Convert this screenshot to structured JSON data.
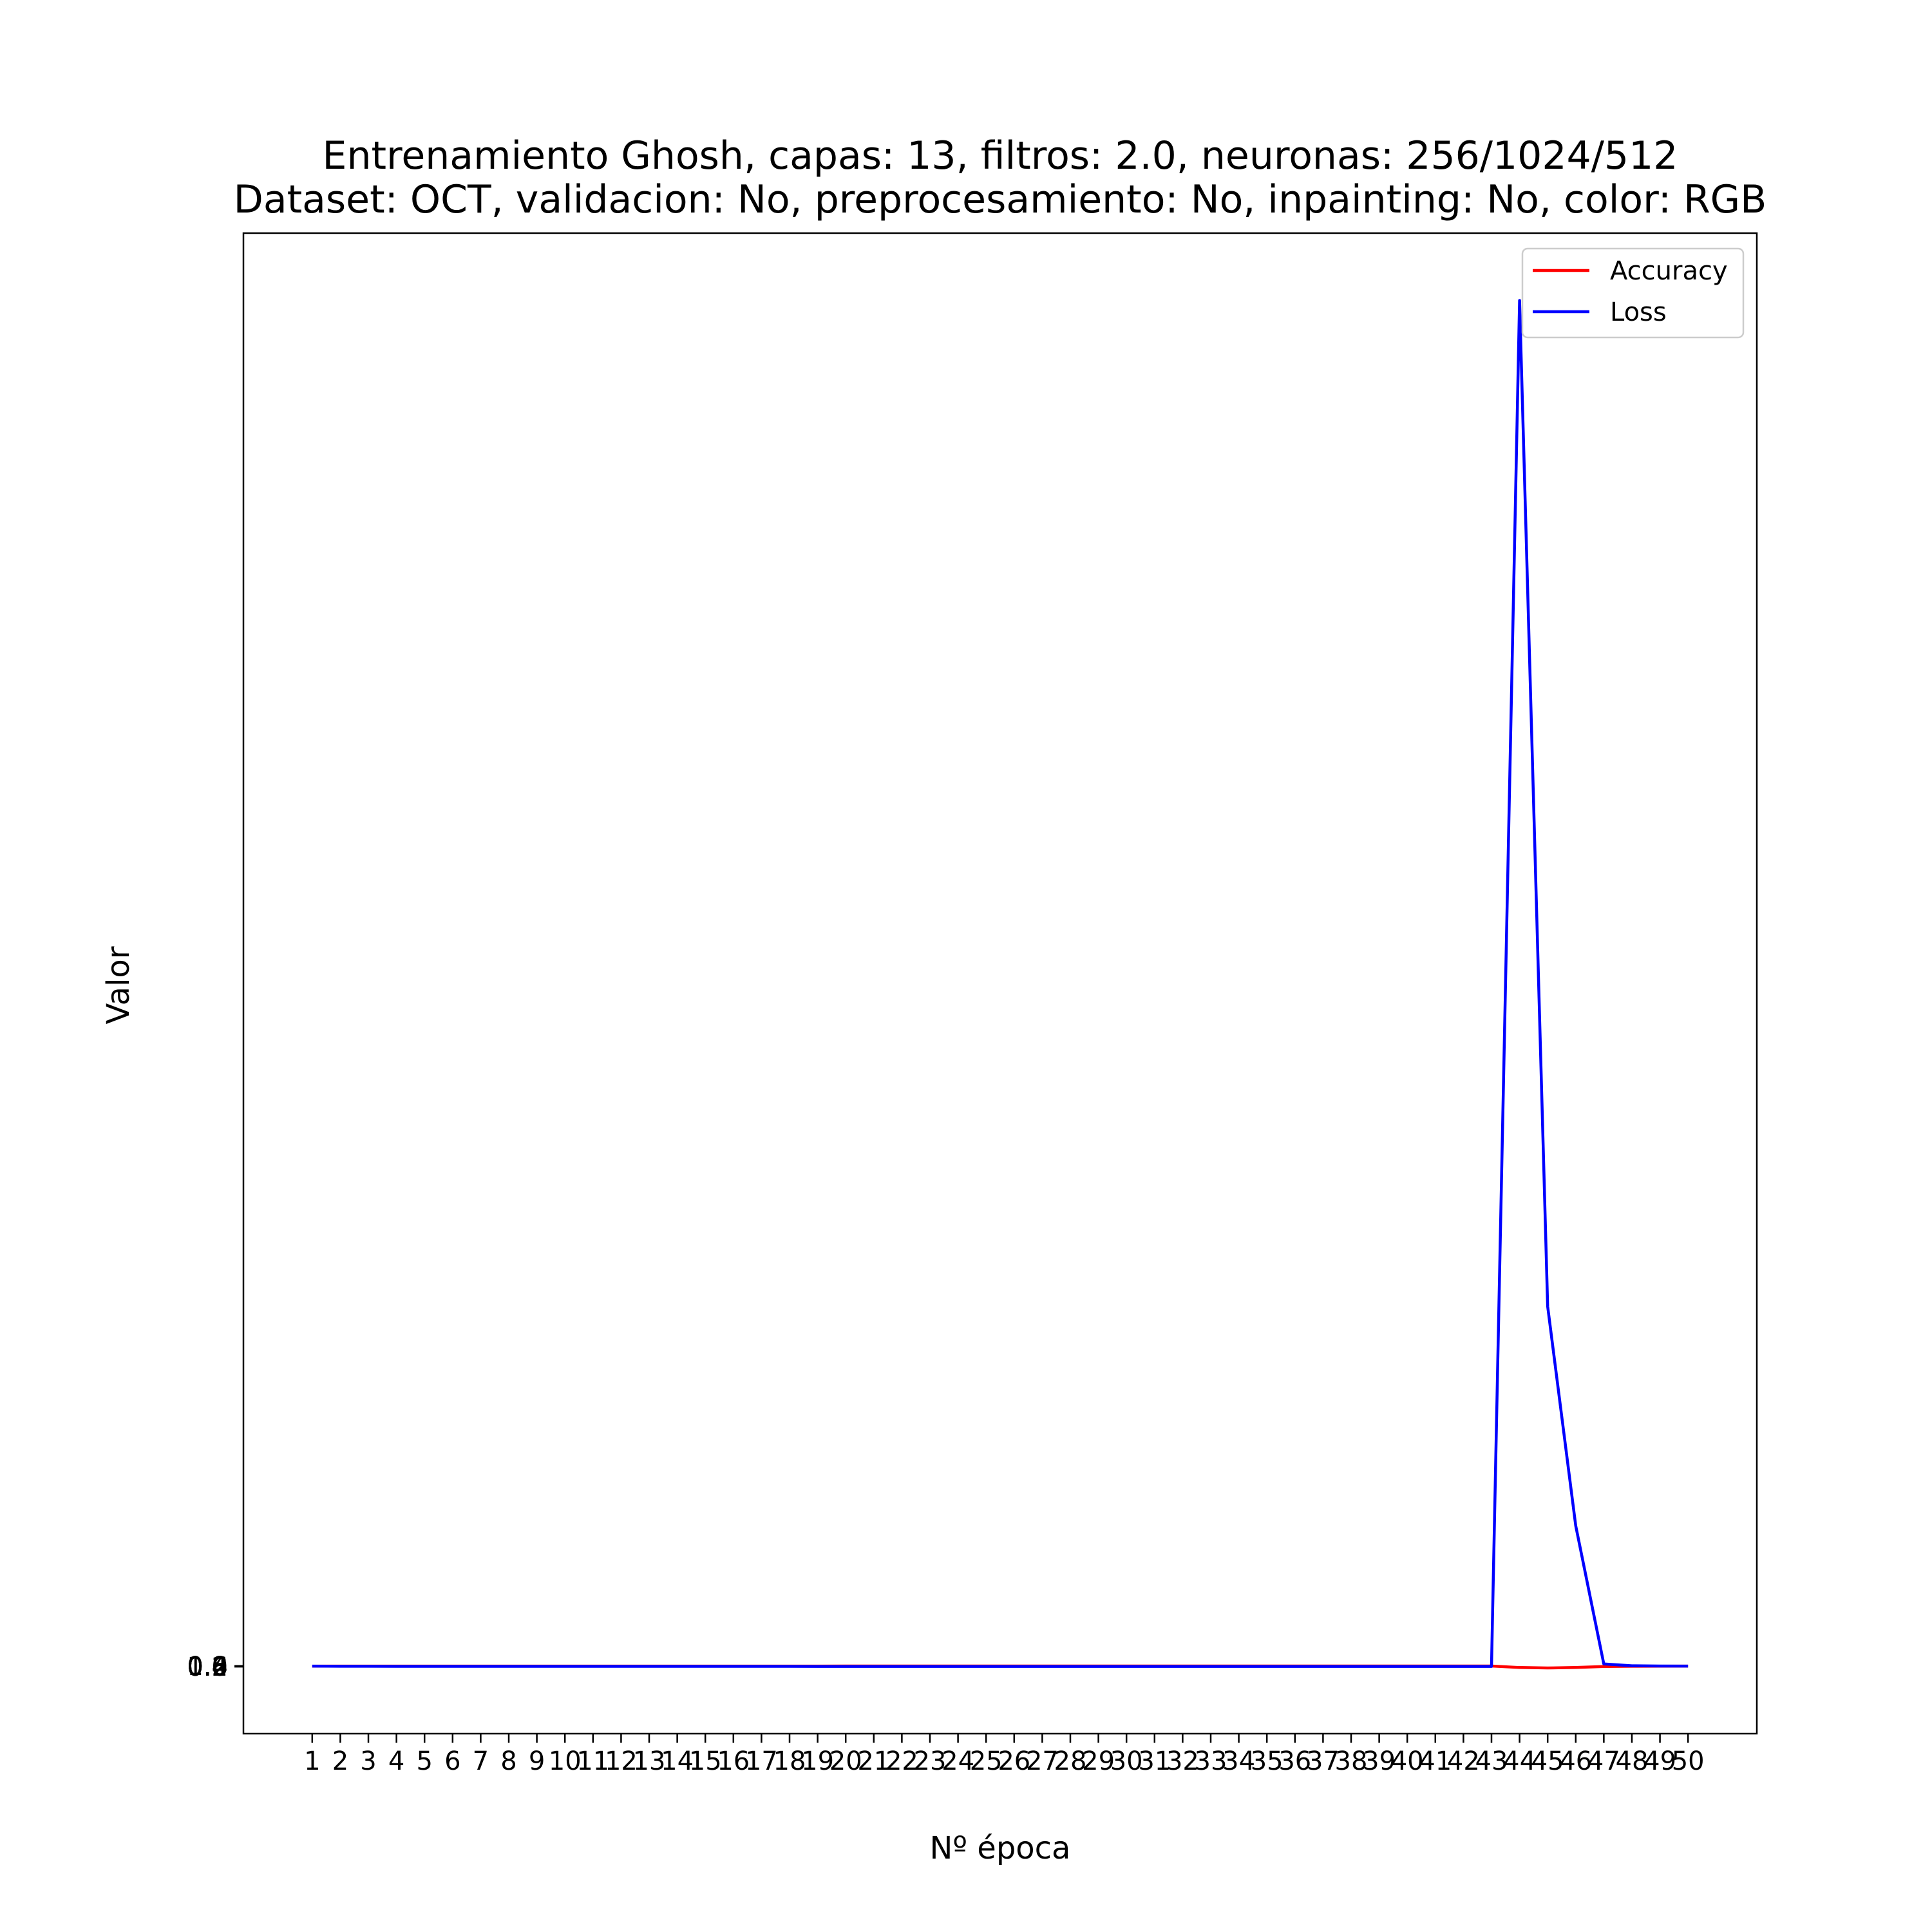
{
  "chart_data": {
    "type": "line",
    "title": "Entrenamiento Ghosh, capas: 13, filtros: 2.0, neuronas: 256/1024/512",
    "subtitle": "Dataset: OCT, validacion: No, preprocesamiento: No, inpainting: No, color: RGB",
    "xlabel": "Nº época",
    "ylabel": "Valor",
    "x": [
      1,
      2,
      3,
      4,
      5,
      6,
      7,
      8,
      9,
      10,
      11,
      12,
      13,
      14,
      15,
      16,
      17,
      18,
      19,
      20,
      21,
      22,
      23,
      24,
      25,
      26,
      27,
      28,
      29,
      30,
      31,
      32,
      33,
      34,
      35,
      36,
      37,
      38,
      39,
      40,
      41,
      42,
      43,
      44,
      45,
      46,
      47,
      48,
      49,
      50
    ],
    "xlim": [
      -1.45,
      52.45
    ],
    "ylim": [
      -84.5,
      1810
    ],
    "y_tick_labels": [
      "0.0",
      "0.2",
      "0.4",
      "0.6",
      "0.8",
      "1.0"
    ],
    "y_tick_values": [
      0,
      0.2,
      0.4,
      0.6,
      0.8,
      1.0
    ],
    "grid": false,
    "legend_position": "top-right",
    "series": [
      {
        "name": "Accuracy",
        "color": "#ff0000",
        "values": [
          0.71,
          0.75,
          0.77,
          0.78,
          0.79,
          0.79,
          0.8,
          0.8,
          0.8,
          0.81,
          0.81,
          0.81,
          0.81,
          0.82,
          0.82,
          0.82,
          0.82,
          0.82,
          0.82,
          0.83,
          0.83,
          0.83,
          0.83,
          0.83,
          0.83,
          0.83,
          0.83,
          0.84,
          0.84,
          0.84,
          0.84,
          0.84,
          0.84,
          0.84,
          0.84,
          0.84,
          0.84,
          0.85,
          0.85,
          0.85,
          0.85,
          0.85,
          0.85,
          -1.0,
          -1.6,
          -1.0,
          0.3,
          0.6,
          0.7,
          0.75
        ]
      },
      {
        "name": "Loss",
        "color": "#0000ff",
        "values": [
          0.8,
          0.6,
          0.55,
          0.52,
          0.5,
          0.49,
          0.48,
          0.47,
          0.46,
          0.45,
          0.45,
          0.44,
          0.44,
          0.43,
          0.43,
          0.42,
          0.42,
          0.42,
          0.41,
          0.41,
          0.41,
          0.4,
          0.4,
          0.4,
          0.4,
          0.39,
          0.39,
          0.39,
          0.39,
          0.38,
          0.38,
          0.38,
          0.38,
          0.38,
          0.37,
          0.37,
          0.37,
          0.37,
          0.37,
          0.36,
          0.36,
          0.36,
          0.36,
          1725,
          455,
          178,
          3.5,
          1.2,
          0.9,
          0.8
        ]
      }
    ]
  }
}
